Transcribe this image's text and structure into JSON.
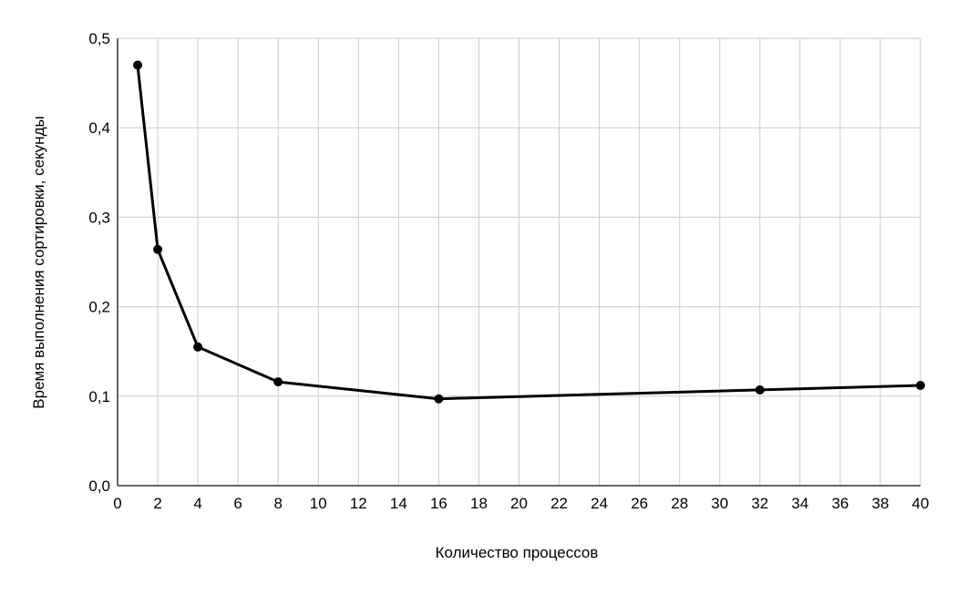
{
  "chart_data": {
    "type": "line",
    "title": "",
    "xlabel": "Количество процессов",
    "ylabel": "Время выполнения сортировки, секунды",
    "xlim": [
      0,
      40
    ],
    "ylim": [
      0,
      0.5
    ],
    "x_ticks": [
      0,
      2,
      4,
      6,
      8,
      10,
      12,
      14,
      16,
      18,
      20,
      22,
      24,
      26,
      28,
      30,
      32,
      34,
      36,
      38,
      40
    ],
    "y_ticks": [
      0.0,
      0.1,
      0.2,
      0.3,
      0.4,
      0.5
    ],
    "y_tick_labels": [
      "0,0",
      "0,1",
      "0,2",
      "0,3",
      "0,4",
      "0,5"
    ],
    "grid": true,
    "legend": "none",
    "series": [
      {
        "x": [
          1,
          2,
          4,
          8,
          16,
          32,
          40
        ],
        "values": [
          0.47,
          0.264,
          0.155,
          0.116,
          0.097,
          0.107,
          0.112
        ]
      }
    ],
    "colors": {
      "line": "#000000",
      "grid": "#cccccc",
      "axis": "#333333"
    }
  }
}
